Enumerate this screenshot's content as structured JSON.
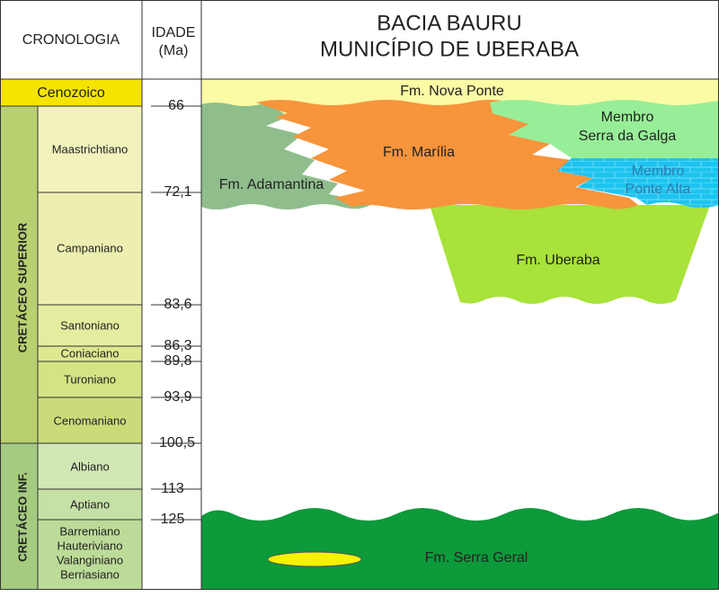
{
  "header": {
    "cronologia": "CRONOLOGIA",
    "idade": [
      "IDADE",
      "(Ma)"
    ],
    "title": [
      "BACIA BAURU",
      "MUNICÍPIO DE UBERABA"
    ]
  },
  "eras": [
    "Cenozoico",
    "CRETÁCEO SUPERIOR",
    "CRETÁCEO INF."
  ],
  "stages": [
    "Maastrichtiano",
    "Campaniano",
    "Santoniano",
    "Coniaciano",
    "Turoniano",
    "Cenomaniano",
    "Albiano",
    "Aptiano",
    [
      "Barremiano",
      "Hauteriviano",
      "Valanginiano",
      "Berriasiano"
    ]
  ],
  "ages": [
    "66",
    "72,1",
    "83,6",
    "86,3",
    "89,8",
    "93,9",
    "100,5",
    "113",
    "125"
  ],
  "formations": {
    "nova_ponte": "Fm. Nova Ponte",
    "adamantina": "Fm. Adamantina",
    "marilia": "Fm. Marília",
    "serra_da_galga": [
      "Membro",
      "Serra da Galga"
    ],
    "ponte_alta": [
      "Membro",
      "Ponte Alta"
    ],
    "uberaba": "Fm. Uberaba",
    "serra_geral": "Fm. Serra Geral"
  }
}
